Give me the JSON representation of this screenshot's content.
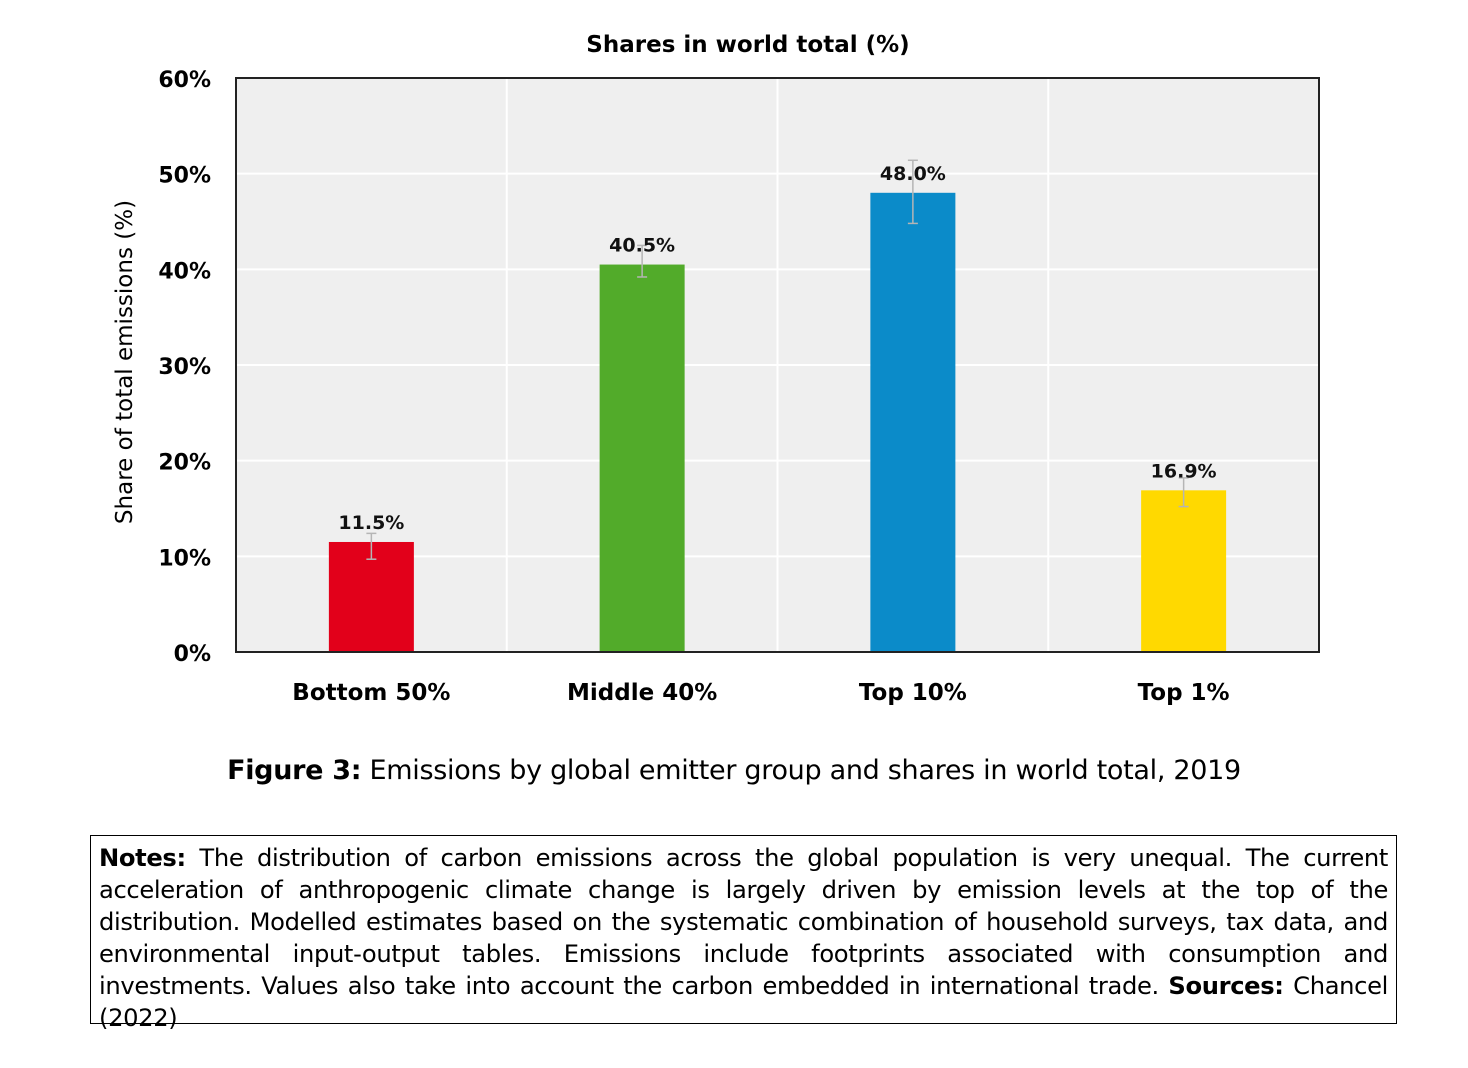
{
  "chart_data": {
    "type": "bar",
    "title": "Shares in world total (%)",
    "ylabel": "Share of total emissions (%)",
    "xlabel": "",
    "categories": [
      "Bottom 50%",
      "Middle 40%",
      "Top 10%",
      "Top 1%"
    ],
    "values": [
      11.5,
      40.5,
      48.0,
      16.9
    ],
    "value_labels": [
      "11.5%",
      "40.5%",
      "48.0%",
      "16.9%"
    ],
    "error_low": [
      9.7,
      39.2,
      44.8,
      15.2
    ],
    "error_high": [
      12.4,
      42.5,
      51.4,
      18.2
    ],
    "colors": [
      "#e2001a",
      "#52ab2a",
      "#0b8bc9",
      "#ffd900"
    ],
    "ylim": [
      0,
      60
    ],
    "yticks": [
      0,
      10,
      20,
      30,
      40,
      50,
      60
    ],
    "ytick_labels": [
      "0%",
      "10%",
      "20%",
      "30%",
      "40%",
      "50%",
      "60%"
    ],
    "grid": true,
    "plot_background": "#efefef"
  },
  "caption": {
    "label": "Figure 3:",
    "text": " Emissions by global emitter group and shares in world total, 2019"
  },
  "notes": {
    "label": "Notes:",
    "text": " The distribution of carbon emissions across the global population is very unequal. The current acceleration of anthropogenic climate change is largely driven by emission levels at the top of the distribution. Modelled estimates based on the systematic combination of household surveys, tax data, and environmental input-output tables. Emissions include footprints associated with consumption and investments. Values also take into account the carbon embedded in international trade. ",
    "sources_label": "Sources:",
    "sources_text": " Chancel (2022)"
  }
}
